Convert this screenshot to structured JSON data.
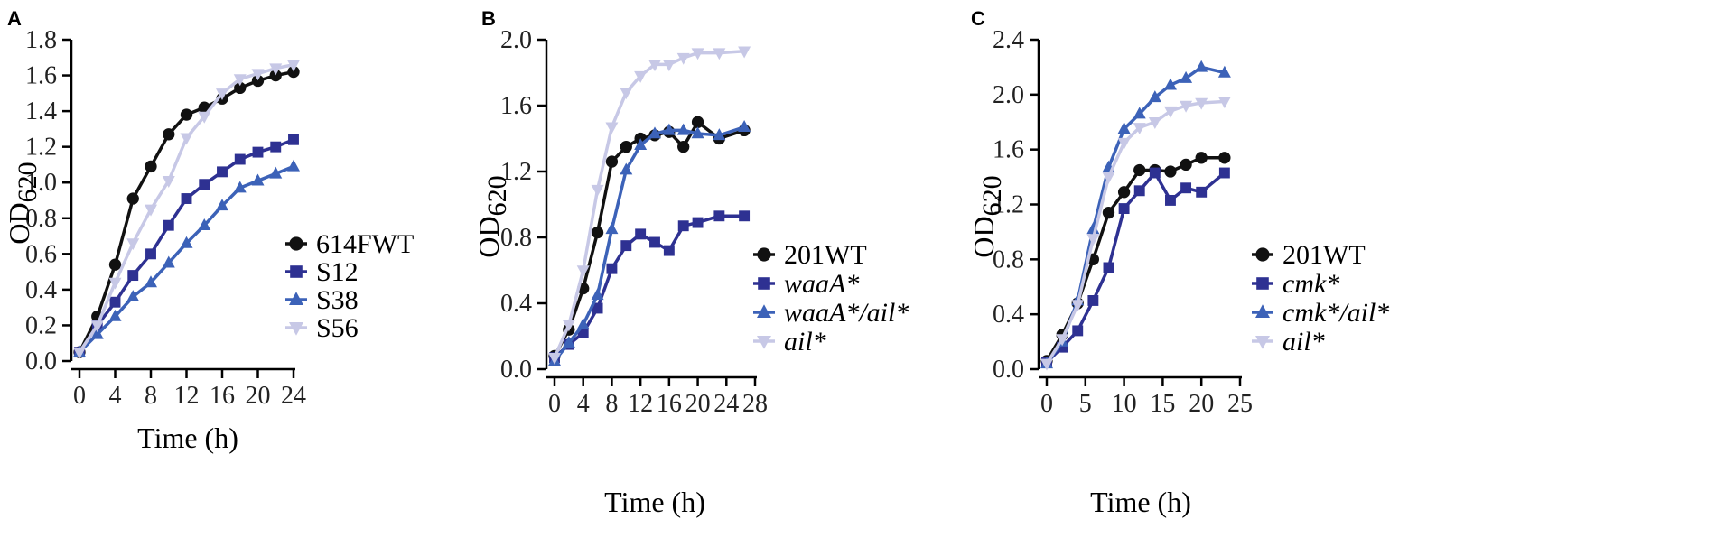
{
  "chart_data": [
    {
      "panel": "A",
      "type": "line",
      "ylabel": "OD",
      "ylabel_sub": "620",
      "xlabel": "Time (h)",
      "ylim": [
        0,
        1.8
      ],
      "yticks": [
        "0.0",
        "0.2",
        "0.4",
        "0.6",
        "0.8",
        "1.0",
        "1.2",
        "1.4",
        "1.6",
        "1.8"
      ],
      "xlim": [
        0,
        24
      ],
      "xticks": [
        "0",
        "4",
        "8",
        "12",
        "16",
        "20",
        "24"
      ],
      "legend_position": "lower-right",
      "series": [
        {
          "name": "614FWT",
          "color": "#111111",
          "marker": "circle",
          "x": [
            0,
            2,
            4,
            6,
            8,
            10,
            12,
            14,
            16,
            18,
            20,
            22,
            24
          ],
          "y": [
            0.05,
            0.25,
            0.54,
            0.91,
            1.09,
            1.27,
            1.38,
            1.42,
            1.47,
            1.53,
            1.57,
            1.6,
            1.62
          ]
        },
        {
          "name": "S12",
          "color": "#2e3192",
          "marker": "square",
          "x": [
            0,
            2,
            4,
            6,
            8,
            10,
            12,
            14,
            16,
            18,
            20,
            22,
            24
          ],
          "y": [
            0.05,
            0.2,
            0.33,
            0.48,
            0.6,
            0.76,
            0.91,
            0.99,
            1.06,
            1.13,
            1.17,
            1.2,
            1.24
          ]
        },
        {
          "name": "S38",
          "color": "#3c62b8",
          "marker": "triangle-up",
          "x": [
            0,
            2,
            4,
            6,
            8,
            10,
            12,
            14,
            16,
            18,
            20,
            22,
            24
          ],
          "y": [
            0.05,
            0.15,
            0.25,
            0.36,
            0.44,
            0.55,
            0.66,
            0.76,
            0.87,
            0.97,
            1.01,
            1.05,
            1.09
          ]
        },
        {
          "name": "S56",
          "color": "#c7c8e6",
          "marker": "triangle-down",
          "x": [
            0,
            2,
            4,
            6,
            8,
            10,
            12,
            14,
            16,
            18,
            20,
            22,
            24
          ],
          "y": [
            0.05,
            0.2,
            0.44,
            0.66,
            0.85,
            1.01,
            1.25,
            1.37,
            1.5,
            1.58,
            1.61,
            1.64,
            1.66
          ]
        }
      ]
    },
    {
      "panel": "B",
      "type": "line",
      "ylabel": "OD",
      "ylabel_sub": "620",
      "xlabel": "Time (h)",
      "ylim": [
        0,
        2.0
      ],
      "yticks": [
        "0.0",
        "0.4",
        "0.8",
        "1.2",
        "1.6",
        "2.0"
      ],
      "xlim": [
        0,
        28
      ],
      "xticks": [
        "0",
        "4",
        "8",
        "12",
        "16",
        "20",
        "24",
        "28"
      ],
      "legend_position": "lower-right",
      "series": [
        {
          "name": "201WT",
          "color": "#111111",
          "marker": "circle",
          "italic": false,
          "x": [
            0,
            2,
            4,
            6,
            8,
            10,
            12,
            14,
            16,
            18,
            20,
            23,
            26.5
          ],
          "y": [
            0.08,
            0.24,
            0.49,
            0.83,
            1.26,
            1.35,
            1.4,
            1.42,
            1.44,
            1.35,
            1.5,
            1.4,
            1.45
          ]
        },
        {
          "name": "waaA*",
          "color": "#2e3192",
          "marker": "square",
          "italic": true,
          "x": [
            0,
            2,
            4,
            6,
            8,
            10,
            12,
            14,
            16,
            18,
            20,
            23,
            26.5
          ],
          "y": [
            0.07,
            0.15,
            0.22,
            0.37,
            0.61,
            0.75,
            0.82,
            0.77,
            0.72,
            0.87,
            0.89,
            0.93,
            0.93
          ]
        },
        {
          "name": "waaA*/ail*",
          "color": "#3c62b8",
          "marker": "triangle-up",
          "italic": true,
          "x": [
            0,
            2,
            4,
            6,
            8,
            10,
            12,
            14,
            16,
            18,
            20,
            23,
            26.5
          ],
          "y": [
            0.05,
            0.16,
            0.27,
            0.45,
            0.85,
            1.21,
            1.36,
            1.43,
            1.45,
            1.45,
            1.43,
            1.42,
            1.47
          ]
        },
        {
          "name": "ail*",
          "color": "#c7c8e6",
          "marker": "triangle-down",
          "italic": true,
          "x": [
            0,
            2,
            4,
            6,
            8,
            10,
            12,
            14,
            16,
            18,
            20,
            23,
            26.5
          ],
          "y": [
            0.07,
            0.27,
            0.6,
            1.09,
            1.47,
            1.68,
            1.78,
            1.85,
            1.85,
            1.89,
            1.92,
            1.92,
            1.93
          ]
        }
      ]
    },
    {
      "panel": "C",
      "type": "line",
      "ylabel": "OD",
      "ylabel_sub": "620",
      "xlabel": "Time (h)",
      "ylim": [
        0,
        2.4
      ],
      "yticks": [
        "0.0",
        "0.4",
        "0.8",
        "1.2",
        "1.6",
        "2.0",
        "2.4"
      ],
      "xlim": [
        0,
        25
      ],
      "xticks": [
        "0",
        "5",
        "10",
        "15",
        "20",
        "25"
      ],
      "legend_position": "lower-right",
      "series": [
        {
          "name": "201WT",
          "color": "#111111",
          "marker": "circle",
          "italic": false,
          "x": [
            0,
            2,
            4,
            6,
            8,
            10,
            12,
            14,
            16,
            18,
            20,
            23
          ],
          "y": [
            0.06,
            0.25,
            0.48,
            0.8,
            1.14,
            1.29,
            1.45,
            1.45,
            1.44,
            1.49,
            1.54,
            1.54
          ]
        },
        {
          "name": "cmk*",
          "color": "#2e3192",
          "marker": "square",
          "italic": true,
          "x": [
            0,
            2,
            4,
            6,
            8,
            10,
            12,
            14,
            16,
            18,
            20,
            23
          ],
          "y": [
            0.05,
            0.16,
            0.28,
            0.5,
            0.74,
            1.17,
            1.3,
            1.43,
            1.23,
            1.32,
            1.29,
            1.43
          ]
        },
        {
          "name": "cmk*/ail*",
          "color": "#3c62b8",
          "marker": "triangle-up",
          "italic": true,
          "x": [
            0,
            2,
            4,
            6,
            8,
            10,
            12,
            14,
            16,
            18,
            20,
            23
          ],
          "y": [
            0.04,
            0.2,
            0.5,
            1.02,
            1.47,
            1.75,
            1.86,
            1.98,
            2.07,
            2.12,
            2.2,
            2.16
          ]
        },
        {
          "name": "ail*",
          "color": "#c7c8e6",
          "marker": "triangle-down",
          "italic": true,
          "x": [
            0,
            2,
            4,
            6,
            8,
            10,
            12,
            14,
            16,
            18,
            20,
            23
          ],
          "y": [
            0.04,
            0.22,
            0.47,
            0.95,
            1.4,
            1.65,
            1.76,
            1.8,
            1.88,
            1.92,
            1.94,
            1.95
          ]
        }
      ]
    }
  ]
}
